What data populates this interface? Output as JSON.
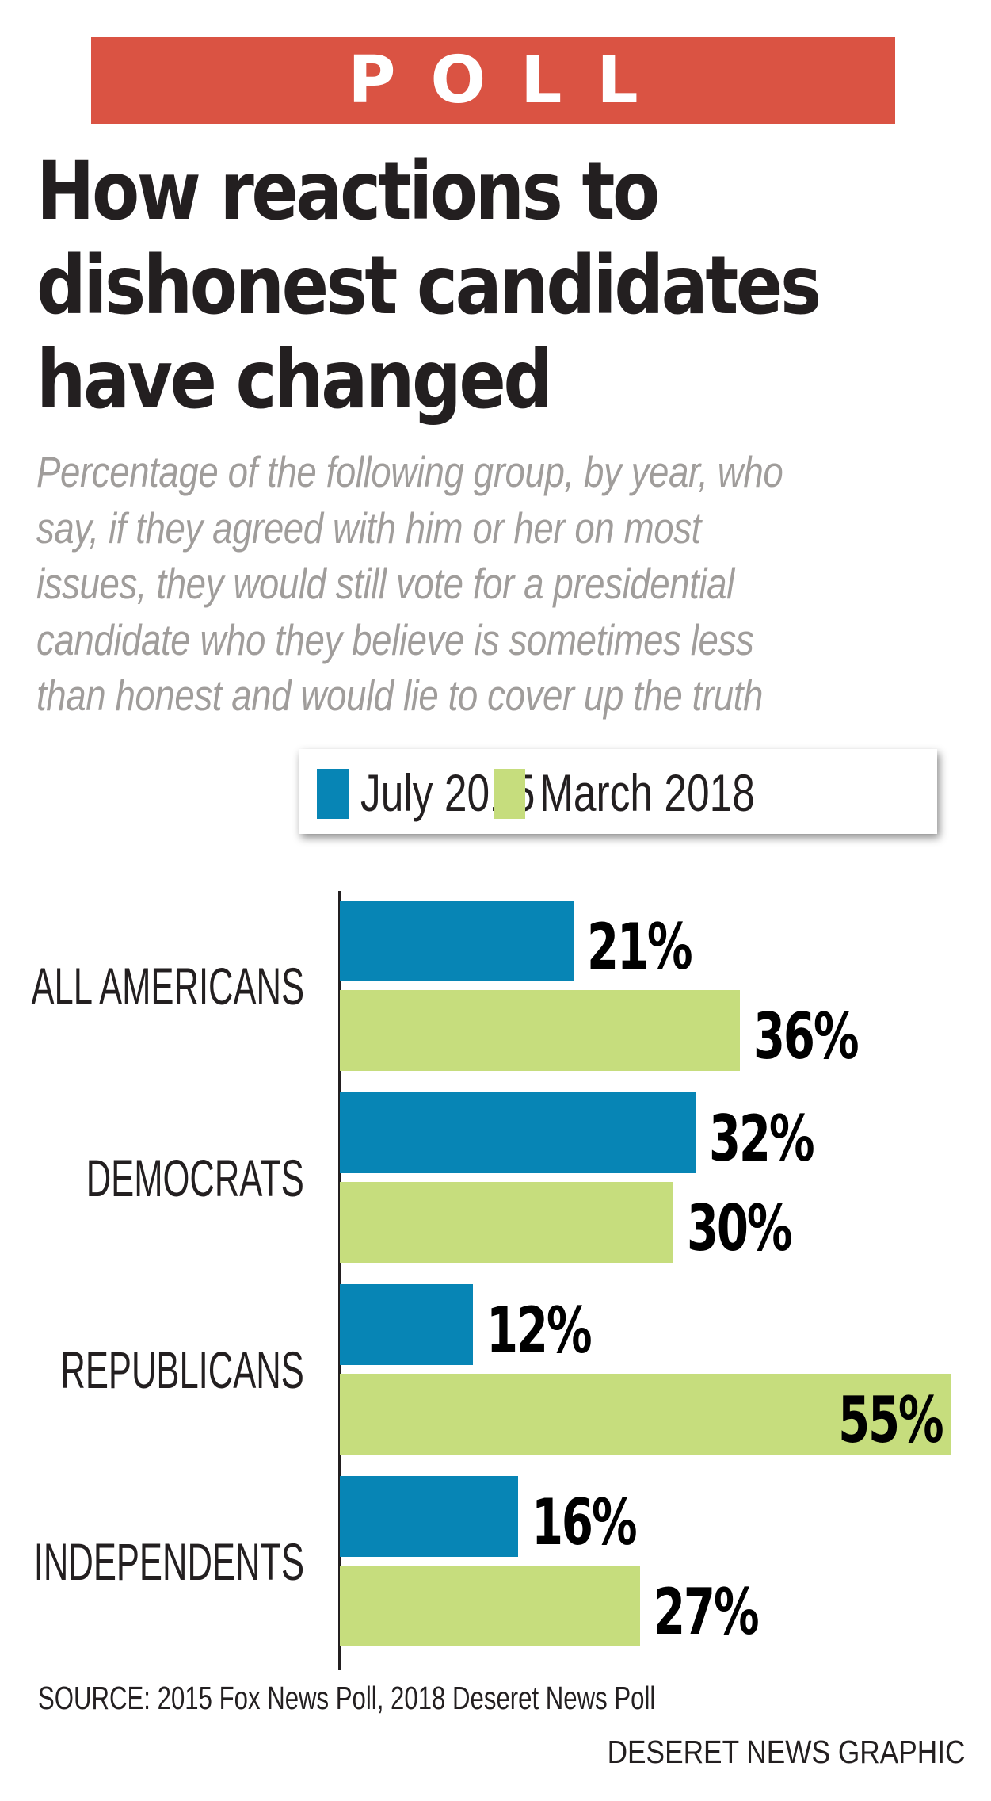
{
  "banner": {
    "label": "POLL",
    "color": "#DA5343"
  },
  "title_lines": [
    "How reactions to",
    "dishonest candidates",
    "have changed"
  ],
  "subtitle_lines": [
    "Percentage of the following group, by year, who",
    "say, if they agreed with him or her on most",
    "issues, they would still vote for a presidential",
    "candidate who they believe is sometimes less",
    "than honest and would lie to cover up the truth"
  ],
  "chart_data": {
    "type": "bar",
    "orientation": "horizontal",
    "title": "How reactions to dishonest candidates have changed",
    "subtitle": "Percentage of the following group, by year, who say, if they agreed with him or her on most issues, they would still vote for a presidential candidate who they believe is sometimes less than honest and would lie to cover up the truth",
    "categories": [
      "ALL AMERICANS",
      "DEMOCRATS",
      "REPUBLICANS",
      "INDEPENDENTS"
    ],
    "series": [
      {
        "name": "July 2015",
        "color": "#0785B5",
        "values": [
          21,
          32,
          12,
          16
        ],
        "labels": [
          "21%",
          "32%",
          "12%",
          "16%"
        ]
      },
      {
        "name": "March 2018",
        "color": "#C6DD7D",
        "values": [
          36,
          30,
          55,
          27
        ],
        "labels": [
          "36%",
          "30%",
          "55%",
          "27%"
        ]
      }
    ],
    "xlabel": "",
    "ylabel": "",
    "xlim": [
      0,
      55
    ],
    "unit": "%",
    "grid": false,
    "legend_position": "top-right"
  },
  "footer": {
    "source": "SOURCE: 2015 Fox News Poll, 2018 Deseret News Poll",
    "credit": "DESERET NEWS GRAPHIC"
  }
}
